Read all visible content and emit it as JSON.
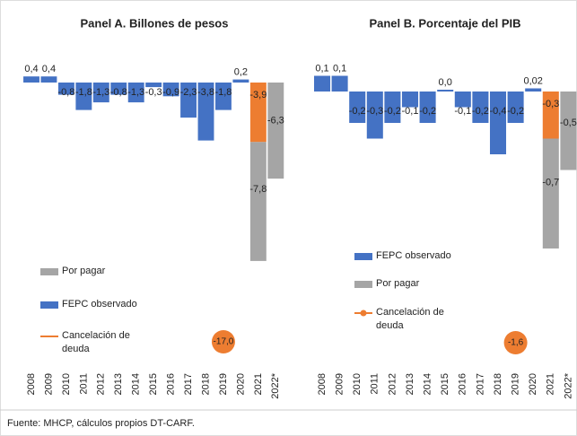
{
  "chart_data": [
    {
      "type": "bar",
      "title": "Panel A. Billones de pesos",
      "categories": [
        "2008",
        "2009",
        "2010",
        "2011",
        "2012",
        "2013",
        "2014",
        "2015",
        "2016",
        "2017",
        "2018",
        "2019",
        "2020",
        "2021",
        "2022*"
      ],
      "ylim": [
        -18,
        1
      ],
      "series": [
        {
          "name": "FEPC observado",
          "color": "#4472c4",
          "values": [
            0.4,
            0.4,
            -0.8,
            -1.8,
            -1.3,
            -0.8,
            -1.3,
            -0.3,
            -0.9,
            -2.3,
            -3.8,
            -1.8,
            0.2,
            null,
            null
          ],
          "value_labels": [
            "0,4",
            "0,4",
            "-0,8",
            "-1,8",
            "-1,3",
            "-0,8",
            "-1,3",
            "-0,3",
            "-0,9",
            "-2,3",
            "-3,8",
            "-1,8",
            "0,2",
            null,
            null
          ]
        },
        {
          "name": "Cancelación de deuda",
          "color": "#ed7d31",
          "values": [
            null,
            null,
            null,
            null,
            null,
            null,
            null,
            null,
            null,
            null,
            null,
            null,
            null,
            -3.9,
            null
          ],
          "value_labels": [
            null,
            null,
            null,
            null,
            null,
            null,
            null,
            null,
            null,
            null,
            null,
            null,
            null,
            "-3,9",
            null
          ]
        },
        {
          "name": "Por pagar",
          "color": "#a5a5a5",
          "values": [
            null,
            null,
            null,
            null,
            null,
            null,
            null,
            null,
            null,
            null,
            null,
            null,
            null,
            -7.8,
            -6.3
          ],
          "value_labels": [
            null,
            null,
            null,
            null,
            null,
            null,
            null,
            null,
            null,
            null,
            null,
            null,
            null,
            "-7,8",
            "-6,3"
          ]
        }
      ],
      "annotation": {
        "value": -17,
        "label": "-17,0"
      }
    },
    {
      "type": "bar",
      "title": "Panel B. Porcentaje del PIB",
      "categories": [
        "2008",
        "2009",
        "2010",
        "2011",
        "2012",
        "2013",
        "2014",
        "2015",
        "2016",
        "2017",
        "2018",
        "2019",
        "2020",
        "2021",
        "2022*"
      ],
      "ylim": [
        -1.7,
        0.1
      ],
      "series": [
        {
          "name": "FEPC observado",
          "color": "#4472c4",
          "values": [
            0.1,
            0.1,
            -0.2,
            -0.3,
            -0.2,
            -0.1,
            -0.2,
            0.0,
            -0.1,
            -0.2,
            -0.4,
            -0.2,
            0.02,
            null,
            null
          ],
          "value_labels": [
            "0,1",
            "0,1",
            "-0,2",
            "-0,3",
            "-0,2",
            "-0,1",
            "-0,2",
            "0,0",
            "-0,1",
            "-0,2",
            "-0,4",
            "-0,2",
            "0,02",
            null,
            null
          ]
        },
        {
          "name": "Cancelación de deuda",
          "color": "#ed7d31",
          "values": [
            null,
            null,
            null,
            null,
            null,
            null,
            null,
            null,
            null,
            null,
            null,
            null,
            null,
            -0.3,
            null
          ],
          "value_labels": [
            null,
            null,
            null,
            null,
            null,
            null,
            null,
            null,
            null,
            null,
            null,
            null,
            null,
            "-0,3",
            null
          ]
        },
        {
          "name": "Por pagar",
          "color": "#a5a5a5",
          "values": [
            null,
            null,
            null,
            null,
            null,
            null,
            null,
            null,
            null,
            null,
            null,
            null,
            null,
            -0.7,
            -0.5
          ],
          "value_labels": [
            null,
            null,
            null,
            null,
            null,
            null,
            null,
            null,
            null,
            null,
            null,
            null,
            null,
            "-0,7",
            "-0,5"
          ]
        }
      ],
      "annotation": {
        "value": -1.6,
        "label": "-1,6"
      }
    }
  ],
  "source": "Fuente: MHCP, cálculos propios DT-CARF."
}
